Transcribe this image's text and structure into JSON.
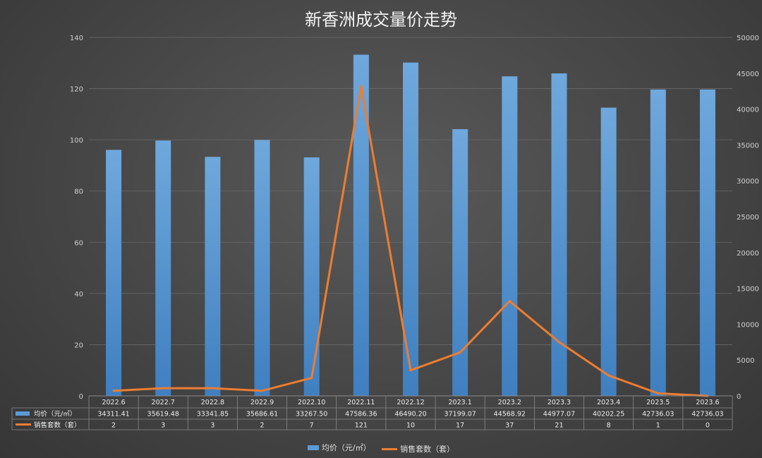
{
  "title": "新香洲成交量价走势",
  "chart_data": {
    "type": "bar",
    "title": "新香洲成交量价走势",
    "categories": [
      "2022.6",
      "2022.7",
      "2022.8",
      "2022.9",
      "2022.10",
      "2022.11",
      "2022.12",
      "2023.1",
      "2023.2",
      "2023.3",
      "2023.4",
      "2023.5",
      "2023.6"
    ],
    "series": [
      {
        "name": "均价（元/㎡）",
        "type": "bar",
        "axis": "right",
        "values": [
          34311.41,
          35619.48,
          33341.85,
          35686.61,
          33267.5,
          47586.36,
          46490.2,
          37199.07,
          44568.92,
          44977.07,
          40202.25,
          42736.03,
          42736.03
        ],
        "labels": [
          "34311.41",
          "35619.48",
          "33341.85",
          "35686.61",
          "33267.50",
          "47586.36",
          "46490.20",
          "37199.07",
          "44568.92",
          "44977.07",
          "40202.25",
          "42736.03",
          "42736.03"
        ],
        "color": "#5b9bd5"
      },
      {
        "name": "销售套数（套）",
        "type": "line",
        "axis": "left",
        "values": [
          2,
          3,
          3,
          2,
          7,
          121,
          10,
          17,
          37,
          21,
          8,
          1,
          0
        ],
        "labels": [
          "2",
          "3",
          "3",
          "2",
          "7",
          "121",
          "10",
          "17",
          "37",
          "21",
          "8",
          "1",
          "0"
        ],
        "color": "#ed7d31"
      }
    ],
    "y_left": {
      "min": 0,
      "max": 140,
      "ticks": [
        "0",
        "20",
        "40",
        "60",
        "80",
        "100",
        "120",
        "140"
      ]
    },
    "y_right": {
      "min": 0,
      "max": 50000,
      "ticks": [
        "0",
        "5000",
        "10000",
        "15000",
        "20000",
        "25000",
        "30000",
        "35000",
        "40000",
        "45000",
        "50000"
      ]
    },
    "grid": true,
    "legend_position": "bottom",
    "data_table": true
  }
}
